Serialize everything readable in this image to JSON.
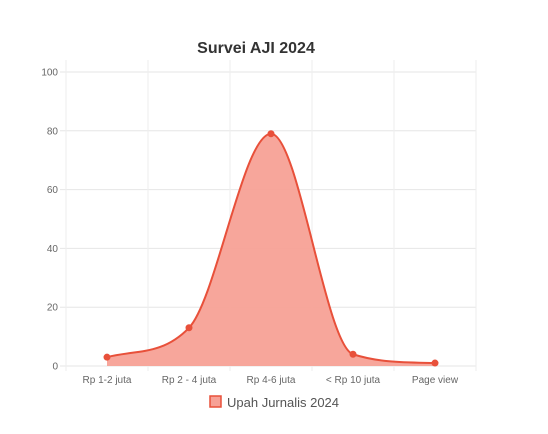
{
  "chart_data": {
    "type": "area",
    "title": "Survei AJI 2024",
    "categories": [
      "Rp 1-2 juta",
      "Rp 2 - 4 juta",
      "Rp 4-6 juta",
      "< Rp 10 juta",
      "Page view"
    ],
    "series": [
      {
        "name": "Upah Jurnalis 2024",
        "values": [
          3,
          13,
          79,
          4,
          1
        ]
      }
    ],
    "ylim": [
      0,
      100
    ],
    "yticks": [
      0,
      20,
      40,
      60,
      80,
      100
    ],
    "grid": true,
    "legend_position": "bottom",
    "colors": {
      "line": "#e8503a",
      "fill": "#f7a196",
      "point": "#e8503a"
    }
  }
}
